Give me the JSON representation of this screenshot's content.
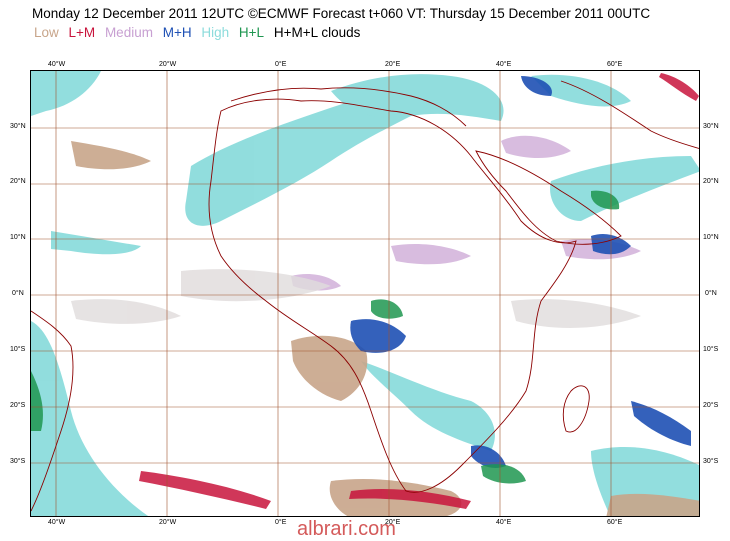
{
  "header": {
    "title": "Monday 12 December 2011 12UTC ©ECMWF Forecast t+060 VT: Thursday 15 December 2011 00UTC"
  },
  "legend": {
    "items": [
      {
        "label": "Low",
        "color": "#c8a58a"
      },
      {
        "label": "L+M",
        "color": "#c8143c"
      },
      {
        "label": "Medium",
        "color": "#c8a0d2"
      },
      {
        "label": "M+H",
        "color": "#1e50b4"
      },
      {
        "label": "High",
        "color": "#8cdcdc"
      },
      {
        "label": "H+L",
        "color": "#1e9650"
      },
      {
        "label": "H+M+L clouds",
        "color": "#000000"
      }
    ]
  },
  "map": {
    "lon_labels": [
      "40°W",
      "20°W",
      "0°E",
      "20°E",
      "40°E",
      "60°E"
    ],
    "lat_labels_left": [
      "30°N",
      "20°N",
      "10°N",
      "0°N",
      "10°S",
      "20°S",
      "30°S"
    ],
    "lat_labels_right": [
      "30°N",
      "20°N",
      "10°N",
      "0°N",
      "10°S",
      "20°S",
      "30°S"
    ],
    "gridline_color": "#a0522d",
    "coast_color": "#8b0000"
  },
  "watermark": "albrari.com"
}
